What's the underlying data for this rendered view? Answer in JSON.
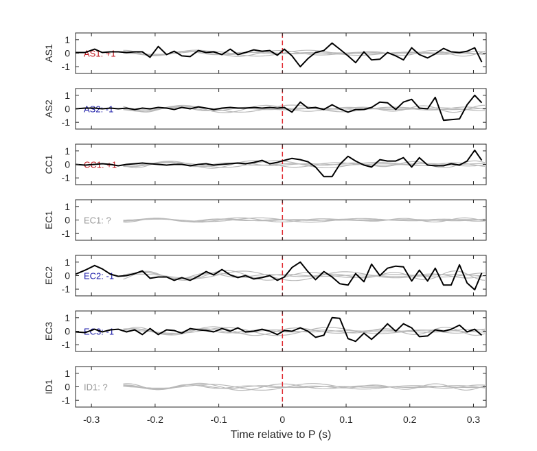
{
  "chart_data": {
    "type": "line",
    "xlabel": "Time relative to P (s)",
    "xlim": [
      -0.325,
      0.32
    ],
    "xticks": [
      -0.3,
      -0.2,
      -0.1,
      0,
      0.1,
      0.2,
      0.3
    ],
    "xtick_labels": [
      "-0.3",
      "-0.2",
      "-0.1",
      "0",
      "0.1",
      "0.2",
      "0.3"
    ],
    "ylim": [
      -1.5,
      1.5
    ],
    "yticks": [
      -1,
      0,
      1
    ],
    "ytick_labels": [
      "-1",
      "0",
      "1"
    ],
    "grid": false,
    "marker_line": {
      "x": 0,
      "color": "#e0262d",
      "style": "dashed"
    },
    "colors": {
      "signal": "#000000",
      "background": "#b9b9b9",
      "positive": "#c0161d",
      "negative": "#1a1aa8",
      "unknown": "#999999"
    },
    "panels": [
      {
        "ylabel": "AS1",
        "label": "AS1: +1",
        "label_color": "#c0161d",
        "x": [
          -0.325,
          -0.31,
          -0.295,
          -0.283,
          -0.27,
          -0.258,
          -0.245,
          -0.232,
          -0.22,
          -0.208,
          -0.195,
          -0.182,
          -0.17,
          -0.158,
          -0.145,
          -0.132,
          -0.12,
          -0.108,
          -0.095,
          -0.082,
          -0.07,
          -0.058,
          -0.045,
          -0.032,
          -0.02,
          -0.008,
          0.003,
          0.015,
          0.028,
          0.04,
          0.052,
          0.065,
          0.078,
          0.09,
          0.103,
          0.115,
          0.128,
          0.14,
          0.153,
          0.165,
          0.178,
          0.19,
          0.203,
          0.215,
          0.228,
          0.24,
          0.253,
          0.265,
          0.278,
          0.29,
          0.302,
          0.313
        ],
        "values": [
          0.05,
          0.05,
          0.3,
          0.05,
          0.1,
          0.1,
          0.05,
          0.1,
          0.1,
          -0.3,
          0.5,
          -0.1,
          0.15,
          -0.2,
          -0.25,
          0.2,
          0.05,
          0.1,
          -0.1,
          0.3,
          -0.1,
          0.05,
          0.25,
          0.15,
          0.2,
          -0.15,
          0.3,
          -0.2,
          -1.0,
          -0.4,
          0.05,
          0.2,
          0.75,
          0.3,
          -0.2,
          -0.7,
          0.1,
          -0.5,
          -0.45,
          0.05,
          -0.2,
          -0.5,
          0.4,
          -0.1,
          -0.35,
          -0.05,
          0.35,
          0.1,
          0.05,
          0.15,
          0.4,
          -0.65
        ],
        "background_amp": 0.25
      },
      {
        "ylabel": "AS2",
        "label": "AS2: -1",
        "label_color": "#1a1aa8",
        "x": [
          -0.325,
          -0.31,
          -0.295,
          -0.283,
          -0.27,
          -0.258,
          -0.245,
          -0.232,
          -0.22,
          -0.208,
          -0.195,
          -0.182,
          -0.17,
          -0.158,
          -0.145,
          -0.132,
          -0.12,
          -0.108,
          -0.095,
          -0.082,
          -0.07,
          -0.058,
          -0.045,
          -0.032,
          -0.02,
          -0.008,
          0.003,
          0.015,
          0.028,
          0.04,
          0.052,
          0.065,
          0.078,
          0.09,
          0.103,
          0.115,
          0.128,
          0.14,
          0.153,
          0.165,
          0.178,
          0.19,
          0.203,
          0.215,
          0.228,
          0.24,
          0.253,
          0.265,
          0.278,
          0.29,
          0.302,
          0.313
        ],
        "values": [
          0.0,
          0.05,
          0.05,
          0.0,
          0.05,
          0.0,
          0.05,
          -0.05,
          0.05,
          0.0,
          0.1,
          0.05,
          -0.05,
          0.1,
          0.0,
          0.15,
          0.05,
          -0.05,
          0.05,
          0.1,
          0.05,
          0.05,
          0.1,
          0.05,
          0.1,
          0.05,
          0.1,
          -0.25,
          0.5,
          0.05,
          0.1,
          -0.05,
          0.3,
          0.0,
          -0.25,
          -0.05,
          -0.05,
          0.1,
          0.5,
          0.45,
          -0.05,
          0.5,
          0.7,
          0.05,
          0.0,
          0.85,
          -0.85,
          -0.8,
          -0.75,
          0.3,
          1.0,
          0.45
        ],
        "background_amp": 0.3
      },
      {
        "ylabel": "CC1",
        "label": "CC1: +1",
        "label_color": "#c0161d",
        "x": [
          -0.325,
          -0.31,
          -0.295,
          -0.283,
          -0.27,
          -0.258,
          -0.245,
          -0.232,
          -0.22,
          -0.208,
          -0.195,
          -0.182,
          -0.17,
          -0.158,
          -0.145,
          -0.132,
          -0.12,
          -0.108,
          -0.095,
          -0.082,
          -0.07,
          -0.058,
          -0.045,
          -0.032,
          -0.02,
          -0.008,
          0.003,
          0.015,
          0.028,
          0.04,
          0.052,
          0.065,
          0.078,
          0.09,
          0.103,
          0.115,
          0.128,
          0.14,
          0.153,
          0.165,
          0.178,
          0.19,
          0.203,
          0.215,
          0.228,
          0.24,
          0.253,
          0.265,
          0.278,
          0.29,
          0.302,
          0.313
        ],
        "values": [
          0.0,
          -0.05,
          0.0,
          0.05,
          0.0,
          -0.1,
          0.0,
          0.05,
          0.1,
          0.05,
          0.0,
          -0.05,
          0.0,
          0.0,
          -0.1,
          0.0,
          0.05,
          -0.05,
          0.0,
          0.05,
          0.1,
          0.05,
          0.15,
          0.3,
          0.05,
          0.15,
          0.3,
          0.45,
          0.35,
          0.2,
          -0.2,
          -0.9,
          -0.9,
          0.0,
          0.6,
          0.25,
          -0.05,
          -0.2,
          0.35,
          0.25,
          0.25,
          0.5,
          -0.2,
          0.5,
          -0.05,
          -0.1,
          -0.1,
          0.05,
          -0.05,
          0.25,
          1.05,
          0.3
        ],
        "background_amp": 0.3
      },
      {
        "ylabel": "EC1",
        "label": "EC1: ?",
        "label_color": "#999999",
        "x": [],
        "values": [],
        "background_amp": 0.18
      },
      {
        "ylabel": "EC2",
        "label": "EC2: -1",
        "label_color": "#1a1aa8",
        "x": [
          -0.325,
          -0.31,
          -0.295,
          -0.283,
          -0.27,
          -0.258,
          -0.245,
          -0.232,
          -0.22,
          -0.208,
          -0.195,
          -0.182,
          -0.17,
          -0.158,
          -0.145,
          -0.132,
          -0.12,
          -0.108,
          -0.095,
          -0.082,
          -0.07,
          -0.058,
          -0.045,
          -0.032,
          -0.02,
          -0.008,
          0.003,
          0.015,
          0.028,
          0.04,
          0.052,
          0.065,
          0.078,
          0.09,
          0.103,
          0.115,
          0.128,
          0.14,
          0.153,
          0.165,
          0.178,
          0.19,
          0.203,
          0.215,
          0.228,
          0.24,
          0.253,
          0.265,
          0.278,
          0.29,
          0.302,
          0.313
        ],
        "values": [
          0.1,
          0.4,
          0.75,
          0.5,
          0.1,
          -0.05,
          0.0,
          0.15,
          0.35,
          -0.2,
          -0.1,
          -0.1,
          -0.35,
          -0.15,
          -0.35,
          -0.05,
          0.3,
          0.05,
          0.45,
          0.05,
          -0.15,
          0.0,
          -0.25,
          -0.15,
          0.0,
          -0.35,
          -0.1,
          0.6,
          1.0,
          0.3,
          -0.3,
          0.3,
          -0.1,
          -0.6,
          -0.7,
          0.15,
          -0.45,
          0.85,
          0.0,
          0.55,
          0.7,
          0.65,
          -0.4,
          0.4,
          -0.4,
          0.55,
          -0.7,
          -0.7,
          0.8,
          -0.55,
          -1.05,
          0.2
        ],
        "background_amp": 0.4
      },
      {
        "ylabel": "EC3",
        "label": "EC3: -1",
        "label_color": "#1a1aa8",
        "x": [
          -0.325,
          -0.31,
          -0.295,
          -0.283,
          -0.27,
          -0.258,
          -0.245,
          -0.232,
          -0.22,
          -0.208,
          -0.195,
          -0.182,
          -0.17,
          -0.158,
          -0.145,
          -0.132,
          -0.12,
          -0.108,
          -0.095,
          -0.082,
          -0.07,
          -0.058,
          -0.045,
          -0.032,
          -0.02,
          -0.008,
          0.003,
          0.015,
          0.028,
          0.04,
          0.052,
          0.065,
          0.078,
          0.09,
          0.103,
          0.115,
          0.128,
          0.14,
          0.153,
          0.165,
          0.178,
          0.19,
          0.203,
          0.215,
          0.228,
          0.24,
          0.253,
          0.265,
          0.278,
          0.29,
          0.302,
          0.313
        ],
        "values": [
          -0.05,
          -0.1,
          0.15,
          -0.05,
          0.1,
          0.15,
          -0.05,
          0.1,
          -0.25,
          0.2,
          -0.25,
          0.1,
          0.05,
          -0.15,
          0.2,
          0.1,
          0.05,
          -0.05,
          0.2,
          0.0,
          0.25,
          -0.05,
          0.0,
          0.15,
          0.0,
          -0.25,
          0.05,
          0.0,
          0.25,
          0.0,
          -0.45,
          -0.3,
          1.0,
          0.95,
          -0.55,
          -0.75,
          -0.15,
          -0.6,
          -0.05,
          0.55,
          0.0,
          0.55,
          0.25,
          -0.4,
          -0.35,
          0.1,
          0.0,
          0.15,
          0.45,
          -0.05,
          0.15,
          -0.3
        ],
        "background_amp": 0.35
      },
      {
        "ylabel": "ID1",
        "label": "ID1: ?",
        "label_color": "#999999",
        "x": [],
        "values": [],
        "background_amp": 0.28
      }
    ]
  }
}
